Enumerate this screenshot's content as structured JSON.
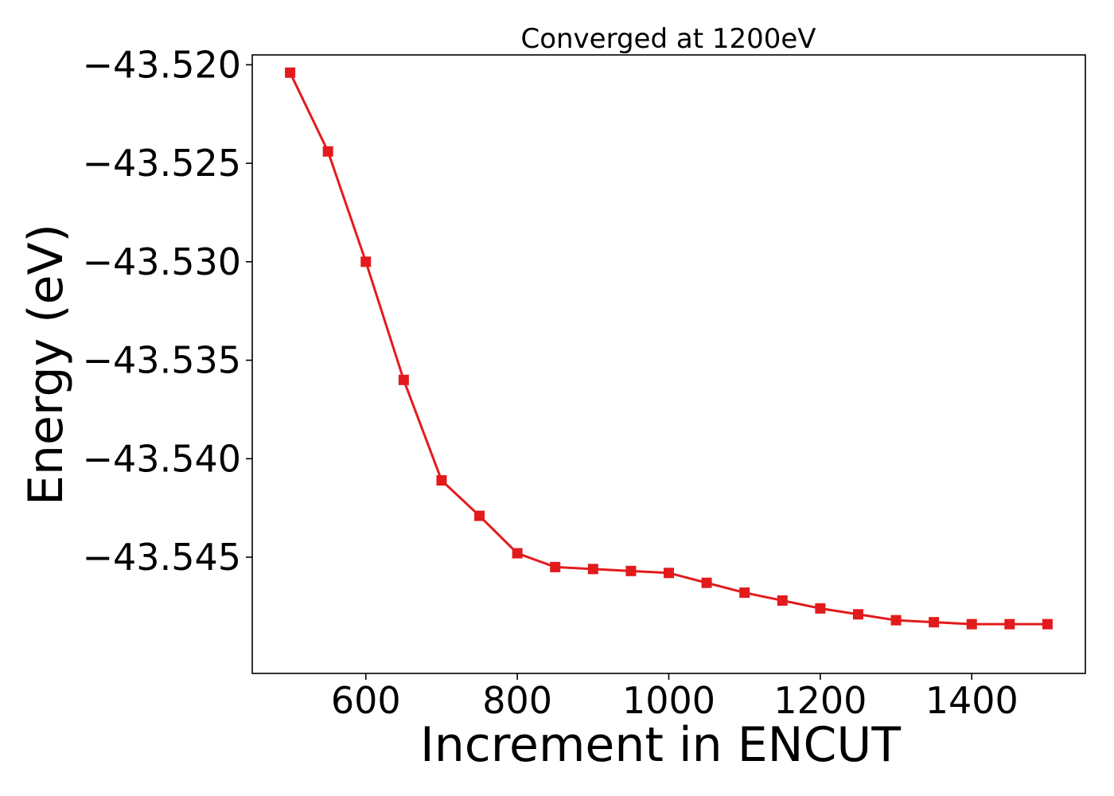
{
  "chart_data": {
    "type": "line",
    "title": "Converged at 1200eV",
    "xlabel": "Increment in ENCUT",
    "ylabel": "Energy (eV)",
    "x": [
      500,
      550,
      600,
      650,
      700,
      750,
      800,
      850,
      900,
      950,
      1000,
      1050,
      1100,
      1150,
      1200,
      1250,
      1300,
      1350,
      1400,
      1450,
      1500
    ],
    "series": [
      {
        "name": "",
        "color": "#e31a1c",
        "marker": "square",
        "values": [
          -43.5204,
          -43.5244,
          -43.53,
          -43.536,
          -43.5411,
          -43.5429,
          -43.5448,
          -43.5455,
          -43.5456,
          -43.5457,
          -43.5458,
          -43.5463,
          -43.5468,
          -43.5472,
          -43.5476,
          -43.5479,
          -43.5482,
          -43.5483,
          -43.5484,
          -43.5484,
          -43.5484
        ]
      }
    ],
    "xlim": [
      450,
      1550
    ],
    "ylim": [
      -43.5509,
      -43.5195
    ],
    "xticks": [
      600,
      800,
      1000,
      1200,
      1400
    ],
    "xtick_labels": [
      "600",
      "800",
      "1000",
      "1200",
      "1400"
    ],
    "yticks": [
      -43.52,
      -43.525,
      -43.53,
      -43.535,
      -43.54,
      -43.545
    ],
    "ytick_labels": [
      "−43.520",
      "−43.525",
      "−43.530",
      "−43.535",
      "−43.540",
      "−43.545"
    ],
    "grid": false,
    "legend": "none"
  }
}
